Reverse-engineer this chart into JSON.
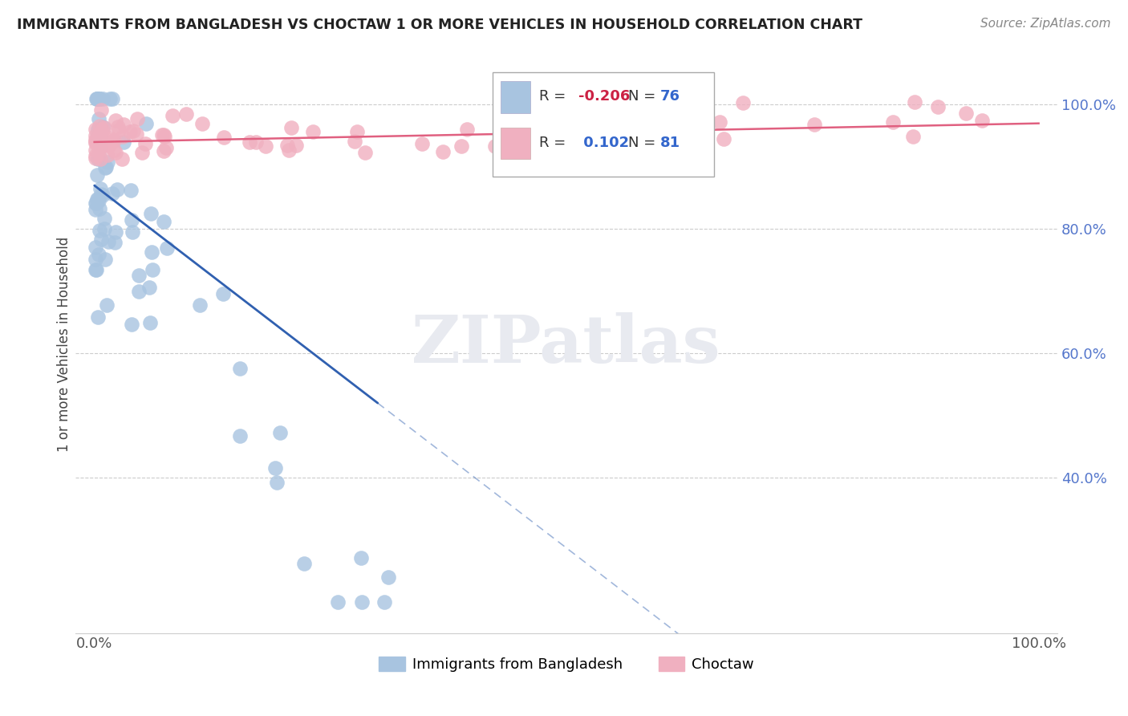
{
  "title": "IMMIGRANTS FROM BANGLADESH VS CHOCTAW 1 OR MORE VEHICLES IN HOUSEHOLD CORRELATION CHART",
  "source": "Source: ZipAtlas.com",
  "ylabel": "1 or more Vehicles in Household",
  "series_blue_label": "Immigrants from Bangladesh",
  "series_pink_label": "Choctaw",
  "blue_color": "#a8c4e0",
  "pink_color": "#f0b0c0",
  "blue_line_color": "#3060b0",
  "pink_line_color": "#e06080",
  "watermark_color": "#e8eaf0",
  "background_color": "#ffffff",
  "grid_color": "#cccccc",
  "ytick_color": "#5577cc",
  "title_color": "#222222",
  "source_color": "#888888",
  "ylabel_color": "#444444",
  "xlim": [
    -0.02,
    1.02
  ],
  "ylim": [
    0.15,
    1.08
  ],
  "yticks": [
    0.4,
    0.6,
    0.8,
    1.0
  ],
  "ytick_labels": [
    "40.0%",
    "60.0%",
    "80.0%",
    "100.0%"
  ],
  "xticks": [
    0.0,
    1.0
  ],
  "xtick_labels": [
    "0.0%",
    "100.0%"
  ],
  "legend_r1": "-0.206",
  "legend_n1": "76",
  "legend_r2": "0.102",
  "legend_n2": "81"
}
